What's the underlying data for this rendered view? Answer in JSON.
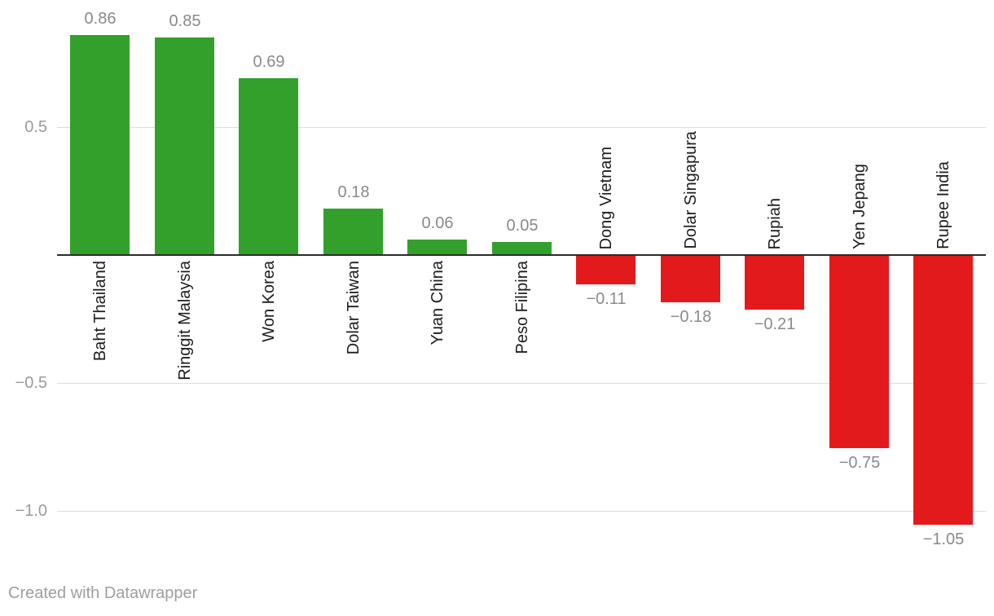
{
  "chart_data": {
    "type": "bar",
    "title": "",
    "xlabel": "",
    "ylabel": "",
    "categories": [
      "Baht Thailand",
      "Ringgit Malaysia",
      "Won Korea",
      "Dolar Taiwan",
      "Yuan China",
      "Peso Filipina",
      "Dong Vietnam",
      "Dolar Singapura",
      "Rupiah",
      "Yen Jepang",
      "Rupee India"
    ],
    "values": [
      0.86,
      0.85,
      0.69,
      0.18,
      0.06,
      0.05,
      -0.11,
      -0.18,
      -0.21,
      -0.75,
      -1.05
    ],
    "value_labels": [
      "0.86",
      "0.85",
      "0.69",
      "0.18",
      "0.06",
      "0.05",
      "−0.11",
      "−0.18",
      "−0.21",
      "−0.75",
      "−1.05"
    ],
    "y_ticks": [
      {
        "value": 0.5,
        "label": "0.5"
      },
      {
        "value": -0.5,
        "label": "−0.5"
      },
      {
        "value": -1.0,
        "label": "−1.0"
      }
    ],
    "ylim": [
      -1.41,
      1.0
    ],
    "grid": true,
    "legend_position": "none",
    "colors": {
      "positive": "#33a02c",
      "negative": "#e31a1c",
      "baseline": "#2b2b2b",
      "gridline": "#dddddd",
      "tick_label": "#9b9b9b",
      "value_label": "#8a8a8a",
      "category_label": "#1d1d1d",
      "footer": "#9e9e9e"
    }
  },
  "footer": {
    "credit": "Created with Datawrapper"
  }
}
